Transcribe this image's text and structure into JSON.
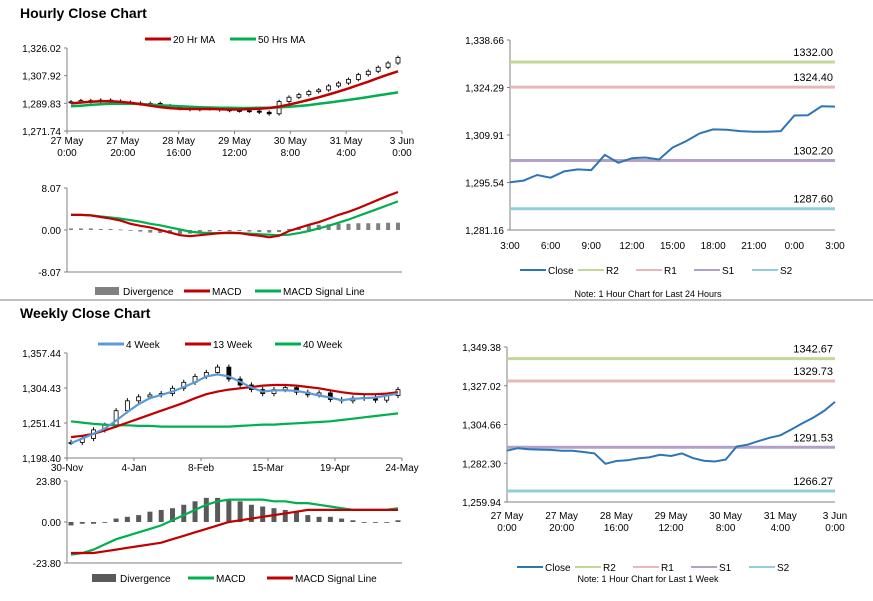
{
  "hourly_title": "Hourly Close Chart",
  "weekly_title": "Weekly Close Chart",
  "colors": {
    "ma_fast": "#c00000",
    "ma_slow": "#00b050",
    "ma4": "#5b9bd5",
    "close": "#2e75b6",
    "r2": "#c4d79b",
    "r1": "#e6b9b8",
    "s1": "#b1a0c7",
    "s2": "#92cddc",
    "div": "#808080",
    "axis": "#808080"
  },
  "chart_data": [
    {
      "id": "hourly_price",
      "type": "line",
      "legend": [
        "20 Hr MA",
        "50 Hrs MA"
      ],
      "x_ticks": [
        "27 May\n0:00",
        "27 May\n20:00",
        "28 May\n16:00",
        "29 May\n12:00",
        "30 May\n8:00",
        "31 May\n4:00",
        "3 Jun\n0:00"
      ],
      "y_ticks": [
        "1,326.02",
        "1,307.92",
        "1,289.83",
        "1,271.74"
      ],
      "ylim": [
        1271.74,
        1326.02
      ],
      "close": [
        1290.8,
        1291.6,
        1291.0,
        1291.9,
        1291.2,
        1290.5,
        1290.0,
        1289.5,
        1289.8,
        1288.3,
        1287.3,
        1286.4,
        1285.8,
        1286.3,
        1286.5,
        1285.6,
        1285.2,
        1285.0,
        1284.8,
        1284.0,
        1283.0,
        1291.0,
        1293.8,
        1295.5,
        1297.5,
        1298.6,
        1301.2,
        1303.1,
        1305.5,
        1308.6,
        1310.8,
        1313.4,
        1316.2,
        1319.8
      ],
      "ma20": [
        1289.8,
        1290.4,
        1290.9,
        1291.2,
        1291.2,
        1290.8,
        1290.2,
        1289.3,
        1288.3,
        1287.4,
        1286.7,
        1286.3,
        1286.1,
        1286.1,
        1286.2,
        1286.0,
        1285.8,
        1285.8,
        1286.1,
        1286.3,
        1286.8,
        1287.7,
        1289.0,
        1290.5,
        1292.1,
        1293.8,
        1295.6,
        1297.5,
        1299.6,
        1301.8,
        1304.0,
        1306.4,
        1308.7,
        1310.8
      ],
      "ma50": [
        1287.9,
        1288.3,
        1288.8,
        1289.2,
        1289.5,
        1289.6,
        1289.6,
        1289.4,
        1289.0,
        1288.6,
        1288.2,
        1287.9,
        1287.6,
        1287.3,
        1287.1,
        1287.0,
        1286.9,
        1286.8,
        1286.8,
        1286.9,
        1287.0,
        1287.2,
        1287.6,
        1288.1,
        1288.7,
        1289.5,
        1290.3,
        1291.2,
        1292.1,
        1293.0,
        1294.0,
        1295.0,
        1296.0,
        1297.0
      ]
    },
    {
      "id": "hourly_macd",
      "type": "line",
      "legend": [
        "Divergence",
        "MACD",
        "MACD Signal Line"
      ],
      "y_ticks": [
        "8.07",
        "0.00",
        "-8.07"
      ],
      "ylim": [
        -8.07,
        8.07
      ],
      "macd": [
        2.9,
        2.9,
        2.8,
        2.5,
        2.2,
        1.8,
        1.2,
        0.8,
        0.5,
        0.0,
        -0.5,
        -1.0,
        -1.2,
        -1.0,
        -0.8,
        -0.6,
        -0.5,
        -0.6,
        -0.9,
        -1.1,
        -1.4,
        -1.1,
        -0.2,
        0.4,
        1.0,
        1.5,
        2.2,
        2.9,
        3.5,
        4.2,
        5.0,
        5.8,
        6.6,
        7.3
      ],
      "signal": [
        2.9,
        2.9,
        2.8,
        2.6,
        2.4,
        2.2,
        1.9,
        1.6,
        1.2,
        0.9,
        0.5,
        0.1,
        -0.3,
        -0.5,
        -0.6,
        -0.6,
        -0.6,
        -0.6,
        -0.7,
        -0.8,
        -0.9,
        -1.0,
        -0.9,
        -0.6,
        -0.2,
        0.3,
        0.8,
        1.4,
        2.0,
        2.7,
        3.4,
        4.1,
        4.8,
        5.5
      ],
      "divergence": [
        0.3,
        0.3,
        0.3,
        0.2,
        0.2,
        0.1,
        -0.1,
        -0.3,
        -0.5,
        -0.6,
        -0.7,
        -0.8,
        -0.7,
        -0.5,
        -0.3,
        -0.2,
        -0.2,
        -0.2,
        -0.3,
        -0.4,
        -0.5,
        -0.4,
        0.2,
        0.6,
        0.9,
        1.0,
        1.1,
        1.2,
        1.2,
        1.3,
        1.3,
        1.3,
        1.4,
        1.4
      ]
    },
    {
      "id": "hourly_close",
      "type": "line",
      "legend": [
        "Close",
        "R2",
        "R1",
        "S1",
        "S2"
      ],
      "x_ticks": [
        "3:00",
        "6:00",
        "9:00",
        "12:00",
        "15:00",
        "18:00",
        "21:00",
        "0:00",
        "3:00"
      ],
      "y_ticks": [
        "1,338.66",
        "1,324.29",
        "1,309.91",
        "1,295.54",
        "1,281.16"
      ],
      "ylim": [
        1281.16,
        1338.66
      ],
      "levels": [
        [
          "R2",
          1332.0,
          "1332.00"
        ],
        [
          "R1",
          1324.4,
          "1324.40"
        ],
        [
          "S1",
          1302.2,
          "1302.20"
        ],
        [
          "S2",
          1287.6,
          "1287.60"
        ]
      ],
      "close": [
        1295.6,
        1296.1,
        1297.8,
        1297.0,
        1298.9,
        1299.5,
        1299.3,
        1303.9,
        1301.5,
        1302.9,
        1303.1,
        1302.5,
        1306.1,
        1308.0,
        1310.4,
        1311.6,
        1311.5,
        1311.1,
        1310.9,
        1310.9,
        1311.1,
        1315.8,
        1315.9,
        1318.6,
        1318.5
      ]
    },
    {
      "id": "weekly_price",
      "type": "line",
      "legend": [
        "4 Week",
        "13 Week",
        "40 Week"
      ],
      "x_ticks": [
        "30-Nov",
        "4-Jan",
        "8-Feb",
        "15-Mar",
        "19-Apr",
        "24-May"
      ],
      "y_ticks": [
        "1,357.44",
        "1,304.43",
        "1,251.41",
        "1,198.40"
      ],
      "ylim": [
        1198.4,
        1357.44
      ],
      "close": [
        1222,
        1228,
        1241,
        1248,
        1270,
        1285,
        1291,
        1294,
        1296,
        1304,
        1313,
        1322,
        1328,
        1336,
        1318,
        1309,
        1302,
        1296,
        1302,
        1305,
        1298,
        1294,
        1297,
        1287,
        1285,
        1289,
        1290,
        1286,
        1293,
        1302
      ],
      "ma4": [
        1221,
        1228,
        1235,
        1243,
        1255,
        1268,
        1280,
        1289,
        1294,
        1299,
        1306,
        1313,
        1322,
        1325,
        1322,
        1314,
        1305,
        1299,
        1301,
        1301,
        1300,
        1297,
        1293,
        1290,
        1286,
        1288,
        1289,
        1290,
        1293,
        1296
      ],
      "ma13": [
        1230,
        1232,
        1235,
        1240,
        1246,
        1252,
        1258,
        1264,
        1270,
        1276,
        1282,
        1289,
        1295,
        1299,
        1302,
        1304,
        1306,
        1308,
        1309,
        1309,
        1308,
        1306,
        1304,
        1301,
        1298,
        1296,
        1295,
        1295,
        1296,
        1298
      ],
      "ma40": [
        1254,
        1252,
        1250,
        1249,
        1248,
        1248,
        1247,
        1247,
        1246,
        1246,
        1246,
        1246,
        1246,
        1246,
        1246,
        1247,
        1248,
        1249,
        1249,
        1250,
        1251,
        1252,
        1253,
        1254,
        1256,
        1258,
        1260,
        1262,
        1264,
        1266
      ]
    },
    {
      "id": "weekly_macd",
      "type": "line",
      "legend": [
        "Divergence",
        "MACD",
        "MACD Signal Line"
      ],
      "y_ticks": [
        "23.80",
        "0.00",
        "-23.80"
      ],
      "ylim": [
        -23.8,
        23.8
      ],
      "macd": [
        -19,
        -18,
        -16,
        -13,
        -10,
        -8,
        -6,
        -4,
        -2,
        1,
        4,
        7,
        10,
        12,
        13,
        13,
        13,
        13,
        12,
        12,
        11,
        11,
        10,
        9,
        8,
        7,
        7,
        7,
        7,
        8
      ],
      "signal": [
        -18,
        -18,
        -18,
        -17,
        -16,
        -15,
        -14,
        -13,
        -12,
        -10,
        -8,
        -6,
        -4,
        -2,
        0,
        1,
        2,
        3,
        4,
        5,
        6,
        7,
        7,
        7,
        7,
        7,
        7,
        7,
        7,
        7
      ],
      "divergence": [
        -2,
        -1,
        -1,
        0,
        2,
        3,
        4,
        6,
        7,
        8,
        10,
        12,
        14,
        14,
        13,
        12,
        10,
        9,
        8,
        7,
        6,
        4,
        3,
        3,
        2,
        1,
        0,
        0,
        0,
        1
      ]
    },
    {
      "id": "weekly_close",
      "type": "line",
      "legend": [
        "Close",
        "R2",
        "R1",
        "S1",
        "S2"
      ],
      "x_ticks": [
        "27 May\n0:00",
        "27 May\n20:00",
        "28 May\n16:00",
        "29 May\n12:00",
        "30 May\n8:00",
        "31 May\n4:00",
        "3 Jun\n0:00"
      ],
      "y_ticks": [
        "1,349.38",
        "1,327.02",
        "1,304.66",
        "1,282.30",
        "1,259.94"
      ],
      "ylim": [
        1259.94,
        1349.38
      ],
      "levels": [
        [
          "R2",
          1342.67,
          "1342.67"
        ],
        [
          "R1",
          1329.73,
          "1329.73"
        ],
        [
          "S1",
          1291.53,
          "1291.53"
        ],
        [
          "S2",
          1266.27,
          "1266.27"
        ]
      ],
      "close": [
        1289.6,
        1291.0,
        1290.4,
        1290.2,
        1290.0,
        1289.5,
        1289.5,
        1288.8,
        1288.0,
        1282.0,
        1283.6,
        1284.0,
        1285.1,
        1285.7,
        1287.2,
        1286.5,
        1288.0,
        1285.3,
        1283.8,
        1283.3,
        1284.4,
        1291.9,
        1293.0,
        1295.1,
        1297.0,
        1298.4,
        1301.8,
        1305.3,
        1308.6,
        1312.5,
        1317.7
      ]
    }
  ],
  "notes": [
    "Note: 1 Hour Chart for Last 24 Hours",
    "Note: 1 Hour Chart for Last 1 Week"
  ]
}
